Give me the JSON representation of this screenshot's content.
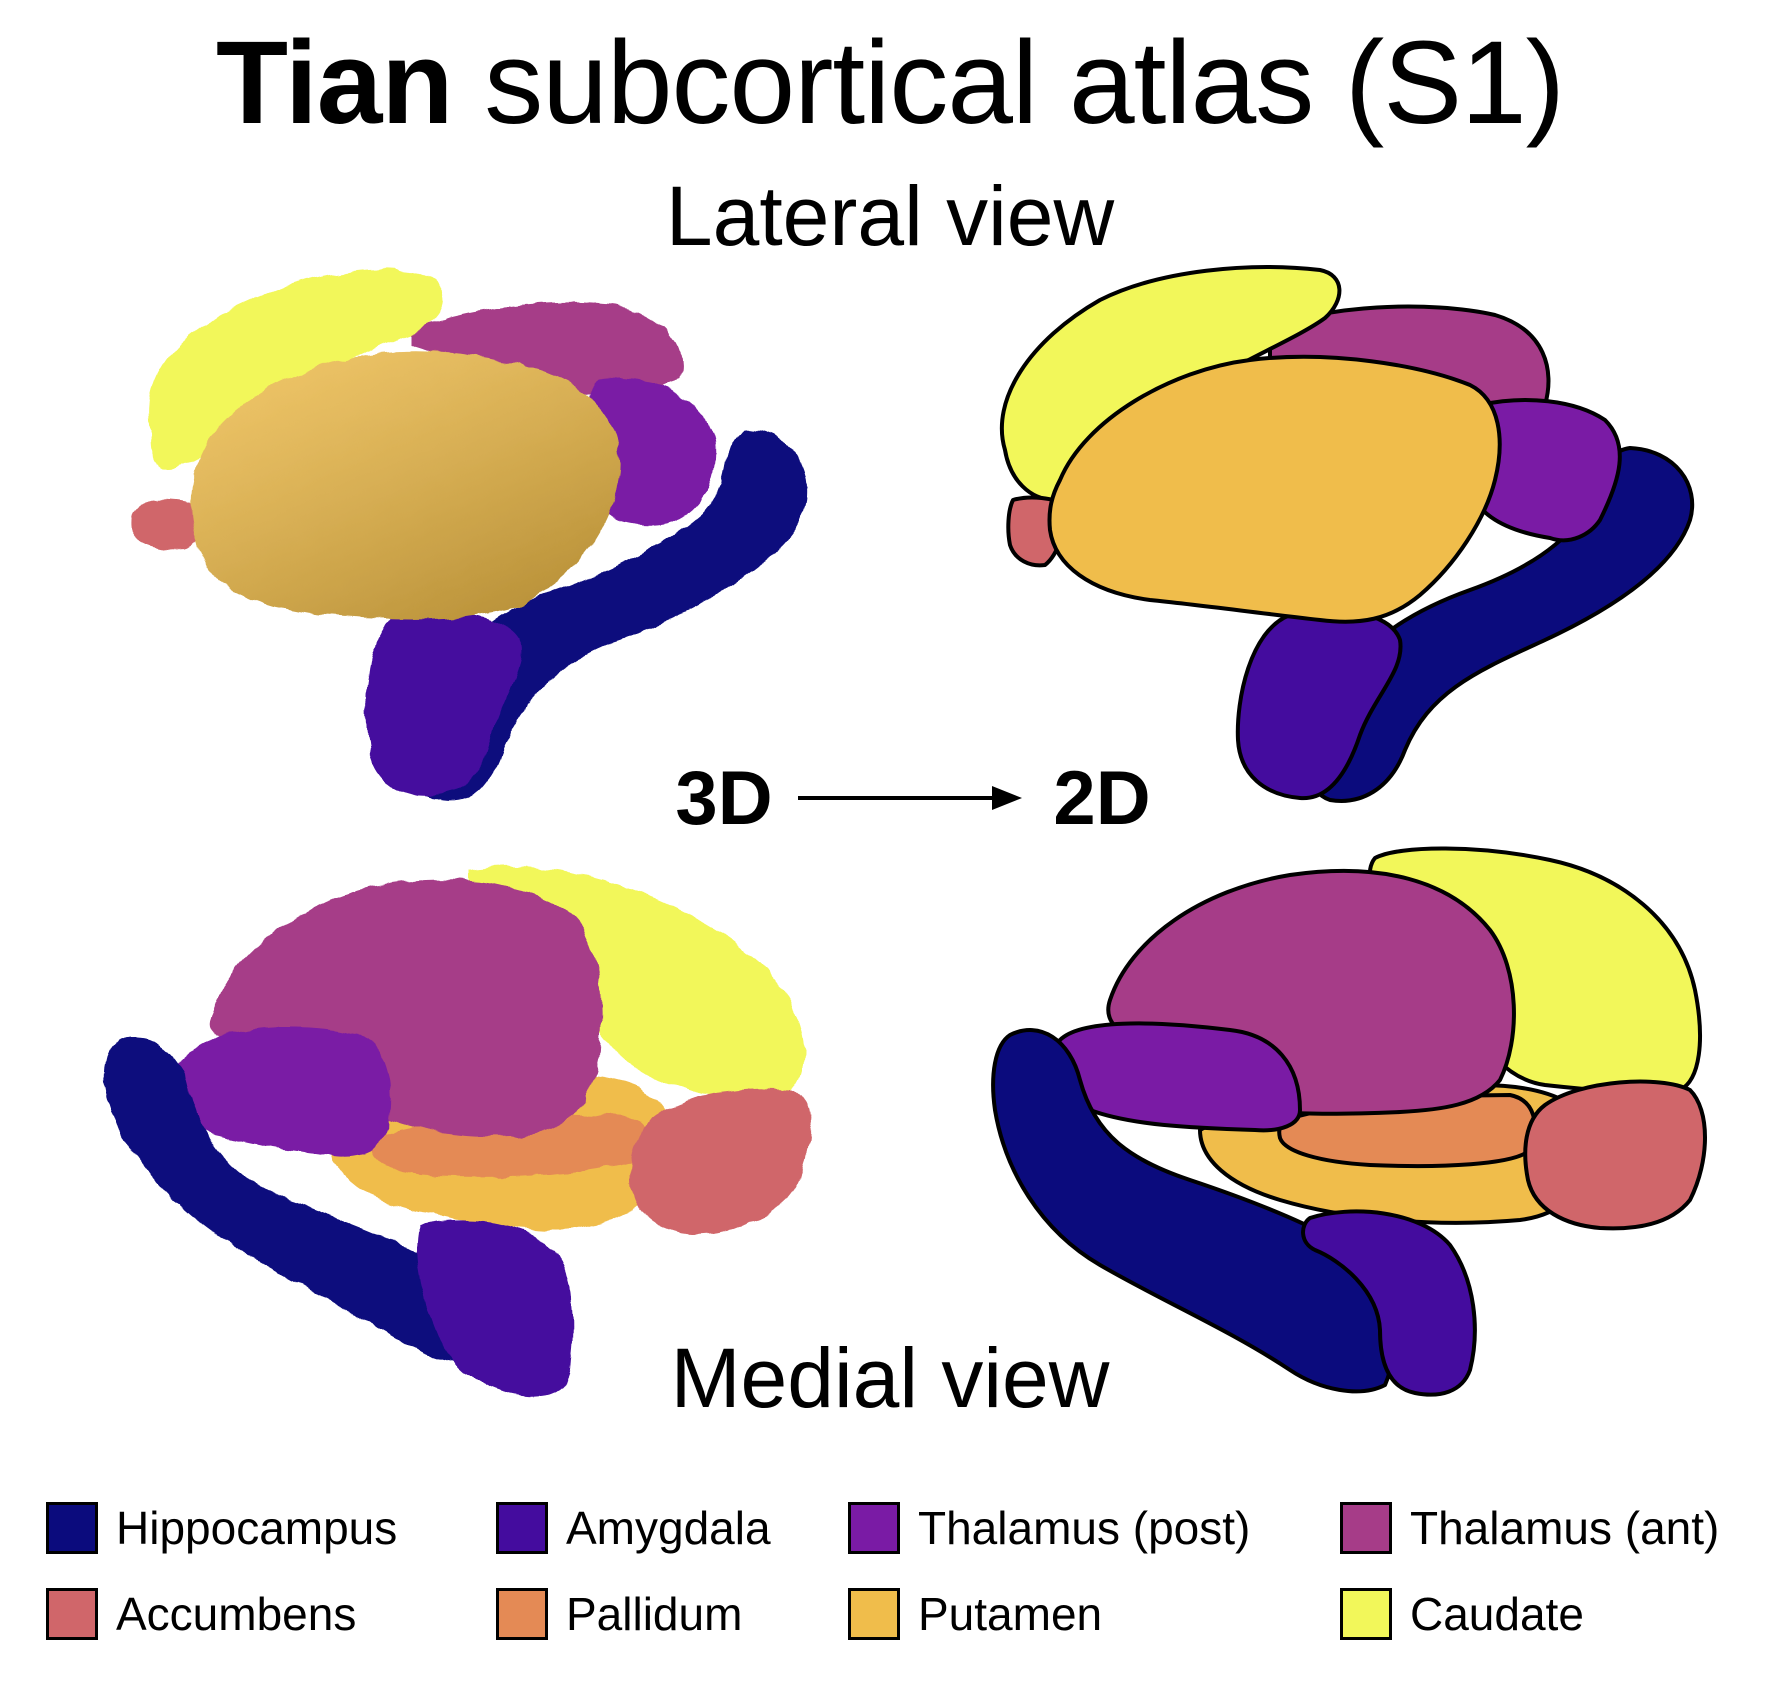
{
  "title": {
    "bold": "Tian",
    "rest": " subcortical atlas (S1)"
  },
  "views": {
    "lateral": "Lateral view",
    "medial": "Medial view"
  },
  "transform": {
    "from": "3D",
    "to": "2D"
  },
  "colors": {
    "hippocampus": "#0b0b7d",
    "amygdala": "#440c9e",
    "thalamus_post": "#7a1ba5",
    "thalamus_ant": "#a63c88",
    "accumbens": "#d0666a",
    "pallidum": "#e48a55",
    "putamen": "#f0bd4b",
    "caudate": "#f2f75a"
  },
  "legend": [
    {
      "label": "Hippocampus",
      "color": "#0b0b7d"
    },
    {
      "label": "Amygdala",
      "color": "#440c9e"
    },
    {
      "label": "Thalamus (post)",
      "color": "#7a1ba5"
    },
    {
      "label": "Thalamus (ant)",
      "color": "#a63c88"
    },
    {
      "label": "Accumbens",
      "color": "#d0666a"
    },
    {
      "label": "Pallidum",
      "color": "#e48a55"
    },
    {
      "label": "Putamen",
      "color": "#f0bd4b"
    },
    {
      "label": "Caudate",
      "color": "#f2f75a"
    }
  ]
}
